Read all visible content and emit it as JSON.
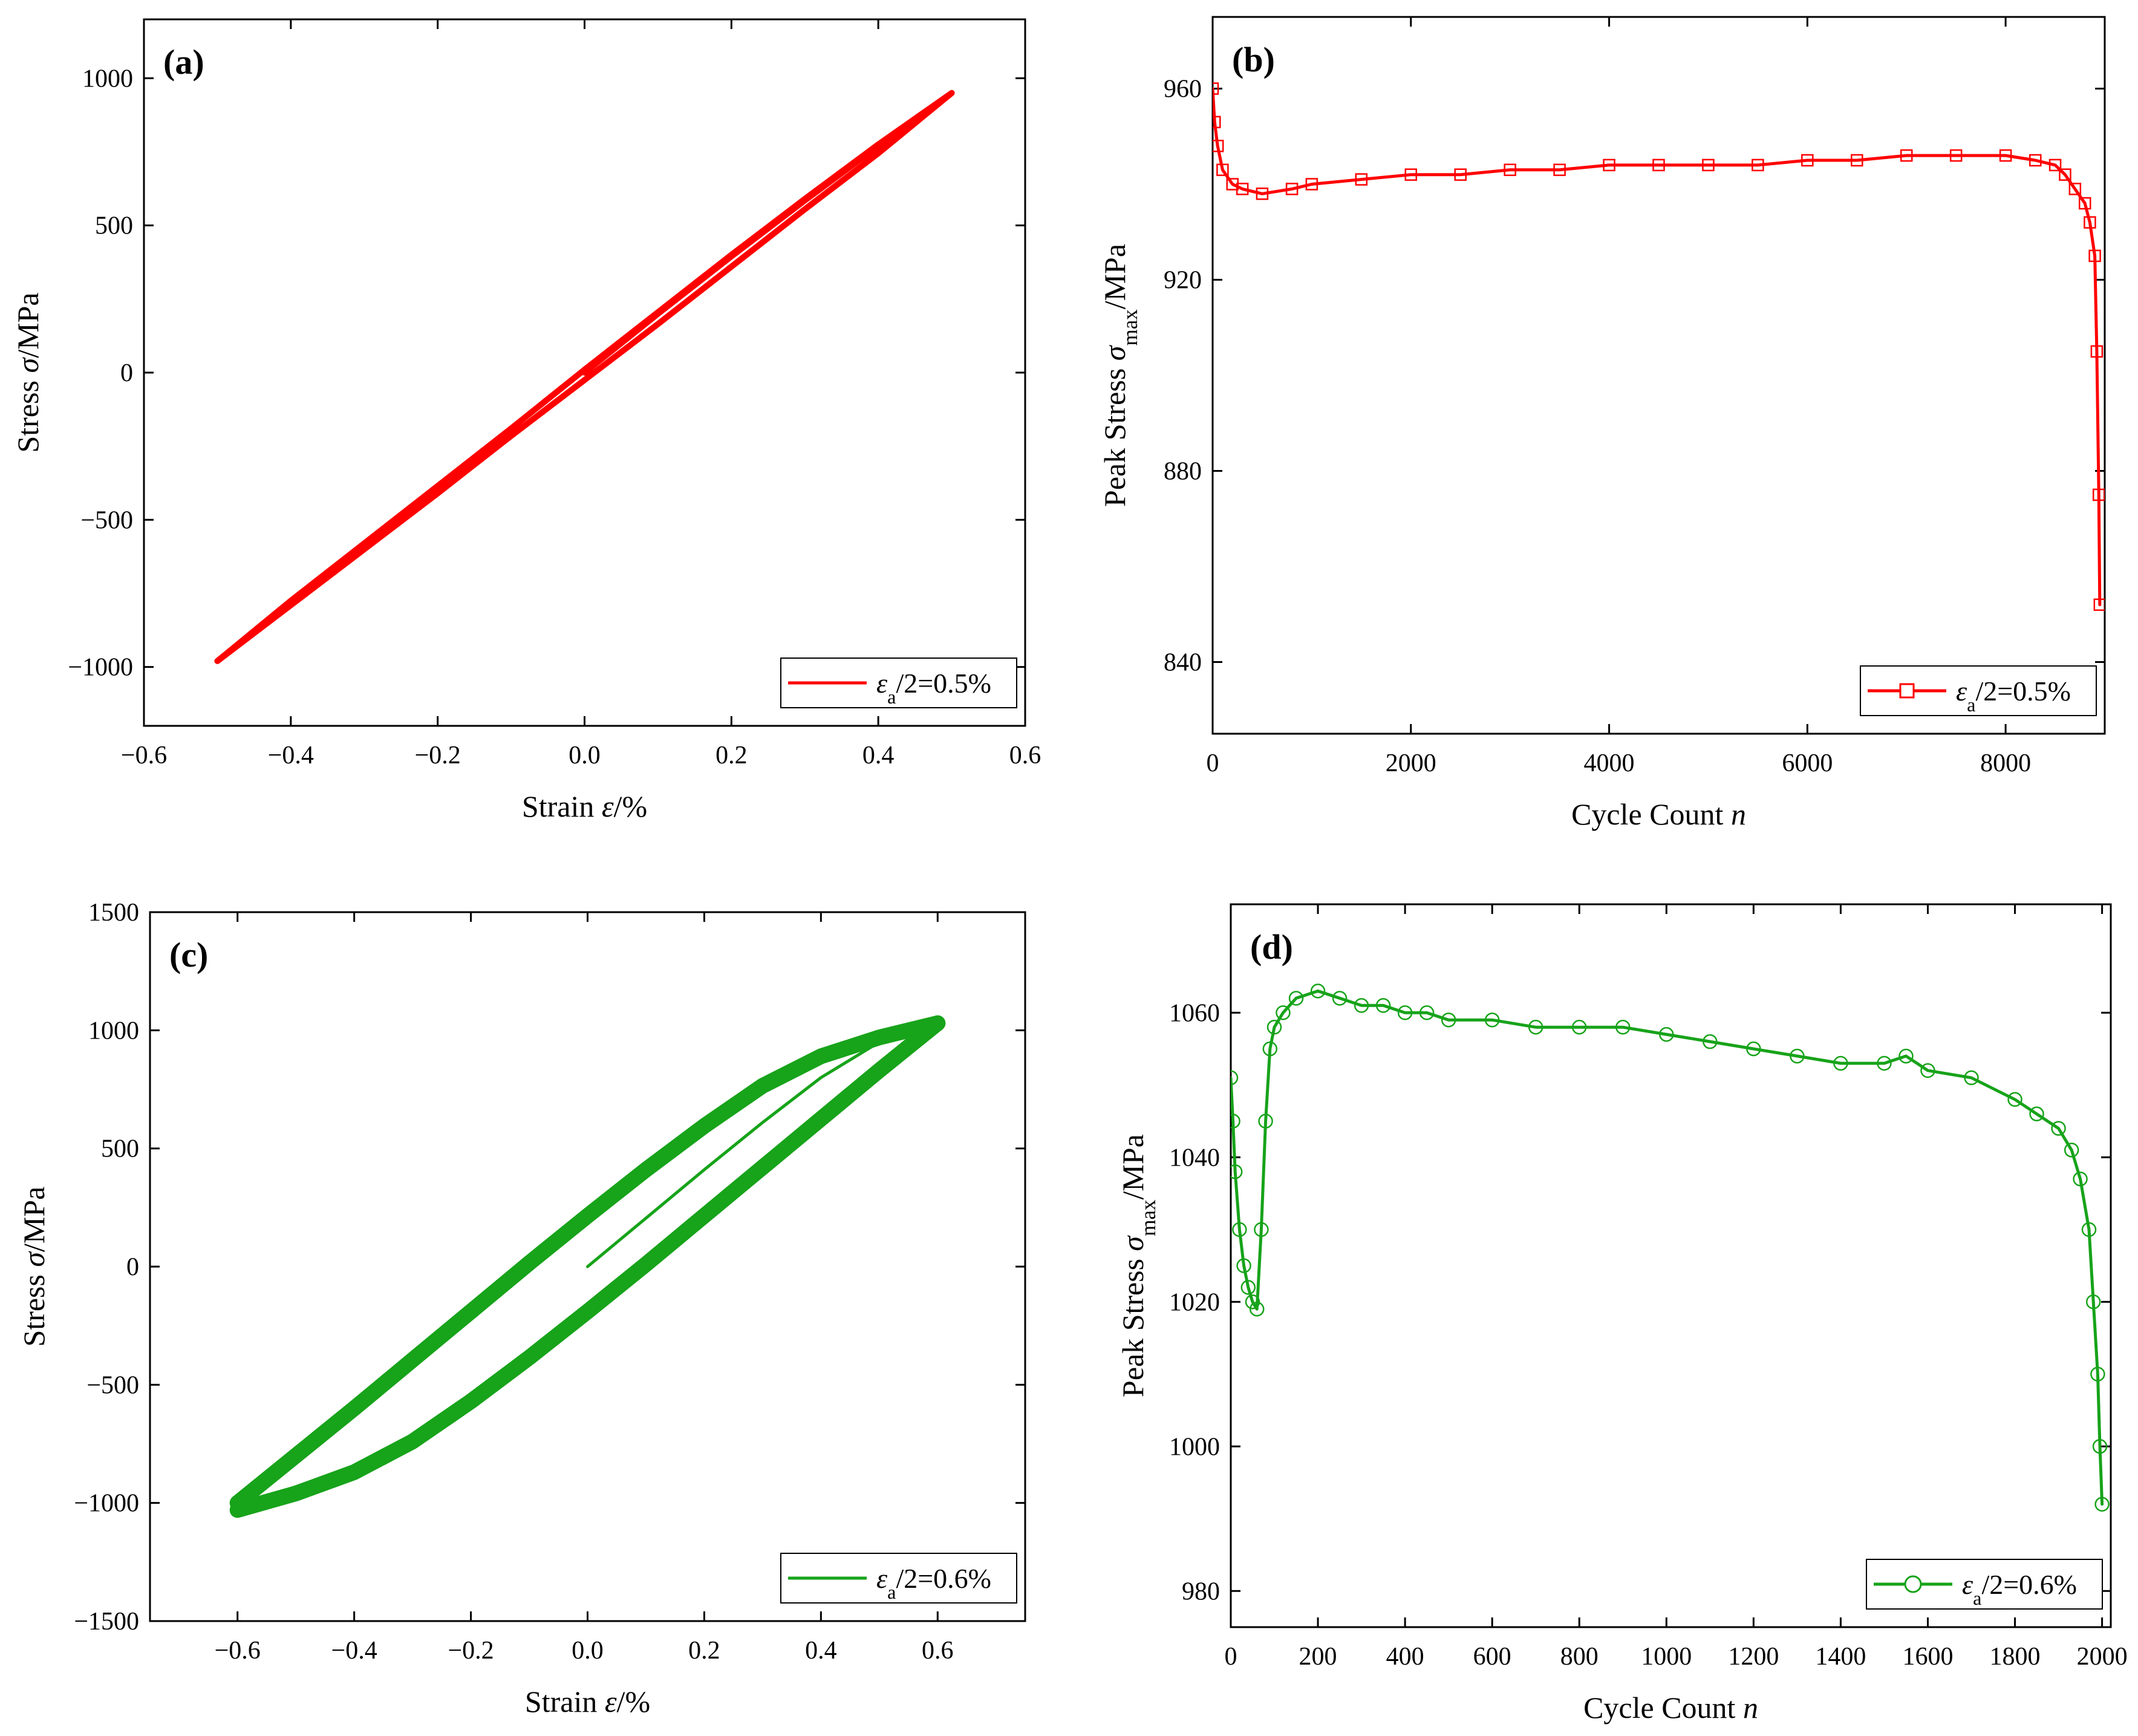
{
  "chart_data": [
    {
      "panel": "(a)",
      "type": "line",
      "xlabel": "Strain ε/%",
      "ylabel": "Stress σ/MPa",
      "xlim": [
        -0.6,
        0.6
      ],
      "ylim": [
        -1200,
        1200
      ],
      "xticks": [
        -0.6,
        -0.4,
        -0.2,
        0.0,
        0.2,
        0.4,
        0.6
      ],
      "xtick_labels": [
        "−0.6",
        "−0.4",
        "−0.2",
        "0.0",
        "0.2",
        "0.4",
        "0.6"
      ],
      "yticks": [
        -1000,
        -500,
        0,
        500,
        1000
      ],
      "ytick_labels": [
        "−1000",
        "−500",
        "0",
        "500",
        "1000"
      ],
      "legend": {
        "text": "εa/2=0.5%",
        "position": "bottom-right",
        "marker": "none"
      },
      "color": "#ff0000",
      "series": [
        {
          "name": "εa/2=0.5%",
          "kind": "hysteresis",
          "x": [
            0.0,
            0.1,
            0.2,
            0.3,
            0.4,
            0.5,
            0.4,
            0.3,
            0.2,
            0.1,
            0.0,
            -0.1,
            -0.2,
            -0.3,
            -0.4,
            -0.5,
            -0.4,
            -0.3,
            -0.2,
            -0.1,
            0.0,
            0.1,
            0.2,
            0.3,
            0.4,
            0.5
          ],
          "y": [
            0,
            200,
            395,
            585,
            770,
            950,
            745,
            555,
            360,
            165,
            -25,
            -215,
            -410,
            -600,
            -790,
            -980,
            -775,
            -580,
            -385,
            -190,
            10,
            205,
            400,
            590,
            775,
            950
          ]
        }
      ]
    },
    {
      "panel": "(b)",
      "type": "line",
      "xlabel": "Cycle Count n",
      "ylabel": "Peak Stress σmax/MPa",
      "xlim": [
        0,
        9000
      ],
      "ylim": [
        825,
        975
      ],
      "xticks": [
        0,
        2000,
        4000,
        6000,
        8000
      ],
      "xtick_labels": [
        "0",
        "2000",
        "4000",
        "6000",
        "8000"
      ],
      "yticks": [
        840,
        880,
        920,
        960
      ],
      "ytick_labels": [
        "840",
        "880",
        "920",
        "960"
      ],
      "legend": {
        "text": "εa/2=0.5%",
        "position": "bottom-right",
        "marker": "square"
      },
      "color": "#ff0000",
      "series": [
        {
          "name": "εa/2=0.5%",
          "x": [
            0,
            20,
            50,
            100,
            200,
            300,
            500,
            800,
            1000,
            1500,
            2000,
            2500,
            3000,
            3500,
            4000,
            4500,
            5000,
            5500,
            6000,
            6500,
            7000,
            7500,
            8000,
            8300,
            8500,
            8600,
            8700,
            8800,
            8850,
            8900,
            8920,
            8940,
            8950
          ],
          "y": [
            960,
            953,
            948,
            943,
            940,
            939,
            938,
            939,
            940,
            941,
            942,
            942,
            943,
            943,
            944,
            944,
            944,
            944,
            945,
            945,
            946,
            946,
            946,
            945,
            944,
            942,
            939,
            936,
            932,
            925,
            905,
            875,
            852
          ]
        }
      ]
    },
    {
      "panel": "(c)",
      "type": "line",
      "xlabel": "Strain ε/%",
      "ylabel": "Stress σ/MPa",
      "xlim": [
        -0.75,
        0.75
      ],
      "ylim": [
        -1500,
        1500
      ],
      "xticks": [
        -0.6,
        -0.4,
        -0.2,
        0.0,
        0.2,
        0.4,
        0.6
      ],
      "xtick_labels": [
        "−0.6",
        "−0.4",
        "−0.2",
        "0.0",
        "0.2",
        "0.4",
        "0.6"
      ],
      "yticks": [
        -1500,
        -1000,
        -500,
        0,
        500,
        1000,
        1500
      ],
      "ytick_labels": [
        "−1500",
        "−1000",
        "−500",
        "0",
        "500",
        "1000",
        "1500"
      ],
      "legend": {
        "text": "εa/2=0.6%",
        "position": "bottom-right",
        "marker": "none"
      },
      "color": "#17a31a",
      "series": [
        {
          "name": "εa/2=0.6%",
          "kind": "initial-loading",
          "x": [
            0.0,
            0.1,
            0.2,
            0.3,
            0.4,
            0.5,
            0.6
          ],
          "y": [
            0,
            205,
            410,
            610,
            800,
            950,
            1050
          ]
        },
        {
          "name": "εa/2=0.6%",
          "kind": "hysteresis-upper",
          "x": [
            -0.6,
            -0.5,
            -0.4,
            -0.3,
            -0.2,
            -0.1,
            0.0,
            0.1,
            0.2,
            0.3,
            0.4,
            0.5,
            0.6
          ],
          "y": [
            -1000,
            -800,
            -600,
            -395,
            -190,
            15,
            215,
            410,
            595,
            765,
            890,
            970,
            1030
          ]
        },
        {
          "name": "εa/2=0.6%",
          "kind": "hysteresis-lower",
          "x": [
            0.6,
            0.5,
            0.4,
            0.3,
            0.2,
            0.1,
            0.0,
            -0.1,
            -0.2,
            -0.3,
            -0.4,
            -0.5,
            -0.6
          ],
          "y": [
            1030,
            830,
            625,
            420,
            215,
            10,
            -190,
            -385,
            -570,
            -740,
            -870,
            -960,
            -1030
          ]
        }
      ]
    },
    {
      "panel": "(d)",
      "type": "line",
      "xlabel": "Cycle Count n",
      "ylabel": "Peak Stress σmax/MPa",
      "xlim": [
        0,
        2020
      ],
      "ylim": [
        975,
        1075
      ],
      "xticks": [
        0,
        200,
        400,
        600,
        800,
        1000,
        1200,
        1400,
        1600,
        1800,
        2000
      ],
      "xtick_labels": [
        "0",
        "200",
        "400",
        "600",
        "800",
        "1000",
        "1200",
        "1400",
        "1600",
        "1800",
        "2000"
      ],
      "yticks": [
        980,
        1000,
        1020,
        1040,
        1060
      ],
      "ytick_labels": [
        "980",
        "1000",
        "1020",
        "1040",
        "1060"
      ],
      "legend": {
        "text": "εa/2=0.6%",
        "position": "bottom-right",
        "marker": "circle"
      },
      "color": "#17a31a",
      "series": [
        {
          "name": "εa/2=0.6%",
          "x": [
            0,
            5,
            10,
            20,
            30,
            40,
            50,
            60,
            70,
            80,
            90,
            100,
            120,
            150,
            200,
            250,
            300,
            350,
            400,
            450,
            500,
            600,
            700,
            800,
            900,
            1000,
            1100,
            1200,
            1300,
            1400,
            1500,
            1550,
            1600,
            1700,
            1800,
            1850,
            1900,
            1930,
            1950,
            1970,
            1980,
            1990,
            1995,
            2000
          ],
          "y": [
            1051,
            1045,
            1038,
            1030,
            1025,
            1022,
            1020,
            1019,
            1030,
            1045,
            1055,
            1058,
            1060,
            1062,
            1063,
            1062,
            1061,
            1061,
            1060,
            1060,
            1059,
            1059,
            1058,
            1058,
            1058,
            1057,
            1056,
            1055,
            1054,
            1053,
            1053,
            1054,
            1052,
            1051,
            1048,
            1046,
            1044,
            1041,
            1037,
            1030,
            1020,
            1010,
            1000,
            992
          ]
        }
      ]
    }
  ]
}
